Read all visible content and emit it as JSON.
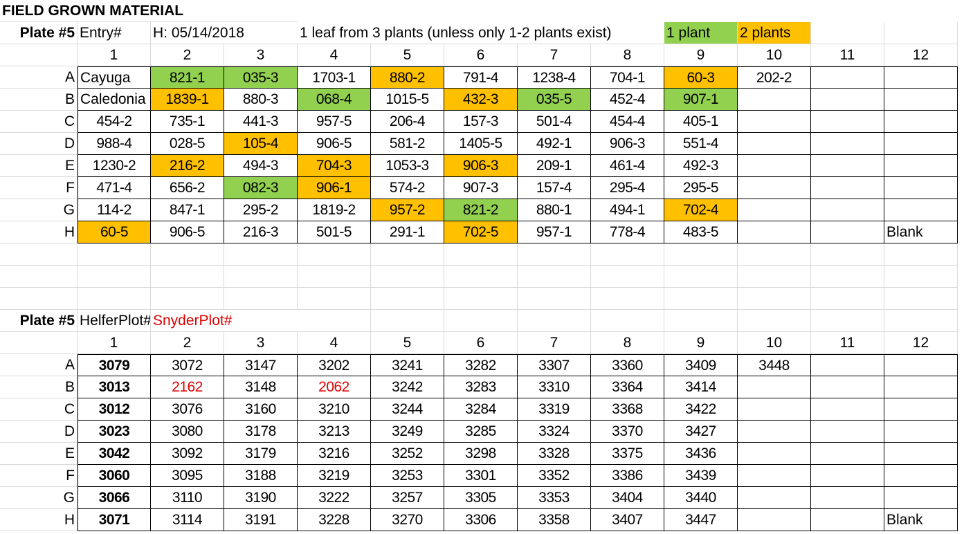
{
  "title": "FIELD GROWN MATERIAL",
  "colors": {
    "one_plant": "#92d050",
    "two_plants": "#ffc000",
    "snyder_red": "#e00000",
    "gridline": "#d9d9d9"
  },
  "plate1": {
    "plate_label": "Plate #5",
    "entry_label": "Entry#",
    "date_label": "H: 05/14/2018",
    "note": "1 leaf from 3 plants (unless only 1-2 plants exist)",
    "legend_one": "1 plant",
    "legend_two": "2 plants",
    "col_headers": [
      "1",
      "2",
      "3",
      "4",
      "5",
      "6",
      "7",
      "8",
      "9",
      "10",
      "11",
      "12"
    ],
    "rows": [
      {
        "label": "A",
        "cells": [
          "Cayuga",
          "821-1",
          "035-3",
          "1703-1",
          "880-2",
          "791-4",
          "1238-4",
          "704-1",
          "60-3",
          "202-2",
          "",
          ""
        ],
        "fills": [
          "",
          "green",
          "green",
          "",
          "orange",
          "",
          "",
          "",
          "orange",
          "",
          "",
          ""
        ]
      },
      {
        "label": "B",
        "cells": [
          "Caledonia",
          "1839-1",
          "880-3",
          "068-4",
          "1015-5",
          "432-3",
          "035-5",
          "452-4",
          "907-1",
          "",
          "",
          ""
        ],
        "fills": [
          "",
          "orange",
          "",
          "green",
          "",
          "orange",
          "green",
          "",
          "green",
          "",
          "",
          ""
        ]
      },
      {
        "label": "C",
        "cells": [
          "454-2",
          "735-1",
          "441-3",
          "957-5",
          "206-4",
          "157-3",
          "501-4",
          "454-4",
          "405-1",
          "",
          "",
          ""
        ],
        "fills": [
          "",
          "",
          "",
          "",
          "",
          "",
          "",
          "",
          "",
          "",
          "",
          ""
        ]
      },
      {
        "label": "D",
        "cells": [
          "988-4",
          "028-5",
          "105-4",
          "906-5",
          "581-2",
          "1405-5",
          "492-1",
          "906-3",
          "551-4",
          "",
          "",
          ""
        ],
        "fills": [
          "",
          "",
          "orange",
          "",
          "",
          "",
          "",
          "",
          "",
          "",
          "",
          ""
        ]
      },
      {
        "label": "E",
        "cells": [
          "1230-2",
          "216-2",
          "494-3",
          "704-3",
          "1053-3",
          "906-3",
          "209-1",
          "461-4",
          "492-3",
          "",
          "",
          ""
        ],
        "fills": [
          "",
          "orange",
          "",
          "orange",
          "",
          "orange",
          "",
          "",
          "",
          "",
          "",
          ""
        ]
      },
      {
        "label": "F",
        "cells": [
          "471-4",
          "656-2",
          "082-3",
          "906-1",
          "574-2",
          "907-3",
          "157-4",
          "295-4",
          "295-5",
          "",
          "",
          ""
        ],
        "fills": [
          "",
          "",
          "green",
          "orange",
          "",
          "",
          "",
          "",
          "",
          "",
          "",
          ""
        ]
      },
      {
        "label": "G",
        "cells": [
          "114-2",
          "847-1",
          "295-2",
          "1819-2",
          "957-2",
          "821-2",
          "880-1",
          "494-1",
          "702-4",
          "",
          "",
          ""
        ],
        "fills": [
          "",
          "",
          "",
          "",
          "orange",
          "green",
          "",
          "",
          "orange",
          "",
          "",
          ""
        ]
      },
      {
        "label": "H",
        "cells": [
          "60-5",
          "906-5",
          "216-3",
          "501-5",
          "291-1",
          "702-5",
          "957-1",
          "778-4",
          "483-5",
          "",
          "",
          "Blank"
        ],
        "fills": [
          "orange",
          "",
          "",
          "",
          "",
          "orange",
          "",
          "",
          "",
          "",
          "",
          ""
        ]
      }
    ]
  },
  "plate2": {
    "plate_label": "Plate #5",
    "helfer_label": "HelferPlot#",
    "snyder_label": "SnyderPlot#",
    "col_headers": [
      "1",
      "2",
      "3",
      "4",
      "5",
      "6",
      "7",
      "8",
      "9",
      "10",
      "11",
      "12"
    ],
    "rows": [
      {
        "label": "A",
        "cells": [
          "3079",
          "3072",
          "3147",
          "3202",
          "3241",
          "3282",
          "3307",
          "3360",
          "3409",
          "3448",
          "",
          ""
        ],
        "red": []
      },
      {
        "label": "B",
        "cells": [
          "3013",
          "2162",
          "3148",
          "2062",
          "3242",
          "3283",
          "3310",
          "3364",
          "3414",
          "",
          "",
          ""
        ],
        "red": [
          1,
          3
        ]
      },
      {
        "label": "C",
        "cells": [
          "3012",
          "3076",
          "3160",
          "3210",
          "3244",
          "3284",
          "3319",
          "3368",
          "3422",
          "",
          "",
          ""
        ],
        "red": []
      },
      {
        "label": "D",
        "cells": [
          "3023",
          "3080",
          "3178",
          "3213",
          "3249",
          "3285",
          "3324",
          "3370",
          "3427",
          "",
          "",
          ""
        ],
        "red": []
      },
      {
        "label": "E",
        "cells": [
          "3042",
          "3092",
          "3179",
          "3216",
          "3252",
          "3298",
          "3328",
          "3375",
          "3436",
          "",
          "",
          ""
        ],
        "red": []
      },
      {
        "label": "F",
        "cells": [
          "3060",
          "3095",
          "3188",
          "3219",
          "3253",
          "3301",
          "3352",
          "3386",
          "3439",
          "",
          "",
          ""
        ],
        "red": []
      },
      {
        "label": "G",
        "cells": [
          "3066",
          "3110",
          "3190",
          "3222",
          "3257",
          "3305",
          "3353",
          "3404",
          "3440",
          "",
          "",
          ""
        ],
        "red": []
      },
      {
        "label": "H",
        "cells": [
          "3071",
          "3114",
          "3191",
          "3228",
          "3270",
          "3306",
          "3358",
          "3407",
          "3447",
          "",
          "",
          "Blank"
        ],
        "red": []
      }
    ]
  }
}
